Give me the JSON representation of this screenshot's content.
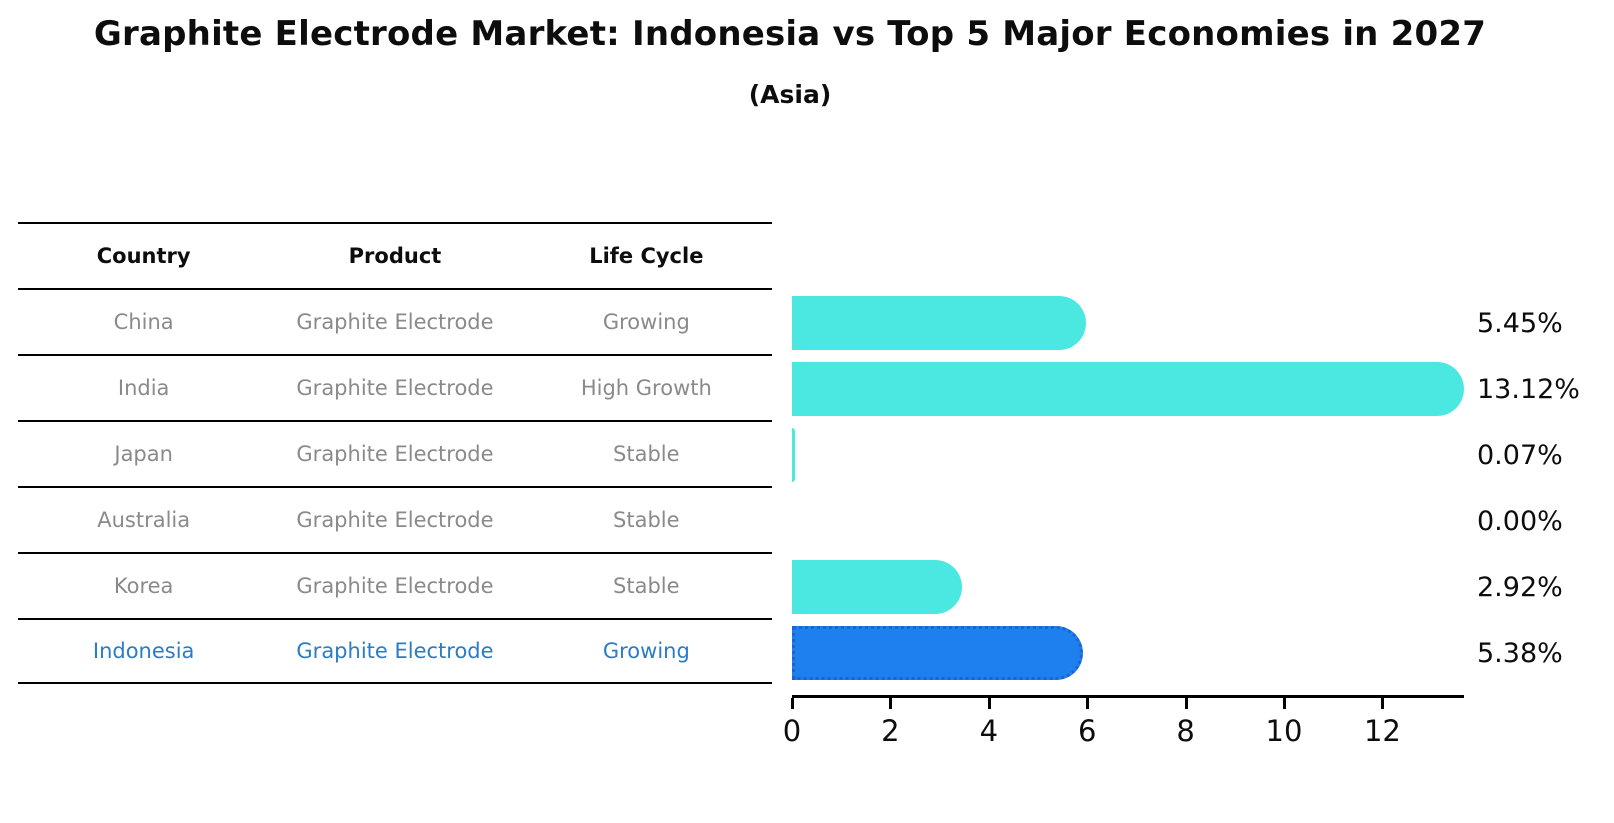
{
  "title": "Graphite Electrode Market: Indonesia vs Top 5 Major Economies in 2027",
  "subtitle": "(Asia)",
  "table": {
    "headers": [
      "Country",
      "Product",
      "Life Cycle"
    ],
    "rows": [
      {
        "country": "China",
        "product": "Graphite Electrode",
        "life_cycle": "Growing",
        "pct": "5.45%"
      },
      {
        "country": "India",
        "product": "Graphite Electrode",
        "life_cycle": "High Growth",
        "pct": "13.12%"
      },
      {
        "country": "Japan",
        "product": "Graphite Electrode",
        "life_cycle": "Stable",
        "pct": "0.07%"
      },
      {
        "country": "Australia",
        "product": "Graphite Electrode",
        "life_cycle": "Stable",
        "pct": "0.00%"
      },
      {
        "country": "Korea",
        "product": "Graphite Electrode",
        "life_cycle": "Stable",
        "pct": "2.92%"
      },
      {
        "country": "Indonesia",
        "product": "Graphite Electrode",
        "life_cycle": "Growing",
        "pct": "5.38%"
      }
    ]
  },
  "chart_data": {
    "type": "bar",
    "orientation": "horizontal",
    "title": "Graphite Electrode Market: Indonesia vs Top 5 Major Economies in 2027",
    "subtitle": "(Asia)",
    "categories": [
      "China",
      "India",
      "Japan",
      "Australia",
      "Korea",
      "Indonesia"
    ],
    "values": [
      5.45,
      13.12,
      0.07,
      0.0,
      2.92,
      5.38
    ],
    "value_labels": [
      "5.45%",
      "13.12%",
      "0.07%",
      "0.00%",
      "2.92%",
      "5.38%"
    ],
    "highlight_category": "Indonesia",
    "xlabel": "",
    "ylabel": "",
    "xlim": [
      0,
      13.6
    ],
    "x_ticks": [
      0,
      2,
      4,
      6,
      8,
      10,
      12
    ],
    "grid": false,
    "legend": false,
    "colors": {
      "bar": "#4be8e1",
      "highlight_bar": "#1e7fee",
      "highlight_border": "#1a66cc",
      "highlight_text": "#2b7cc7",
      "cell_text": "#8a8a8a",
      "header_text": "#0d0d0d",
      "axis": "#000000"
    }
  }
}
